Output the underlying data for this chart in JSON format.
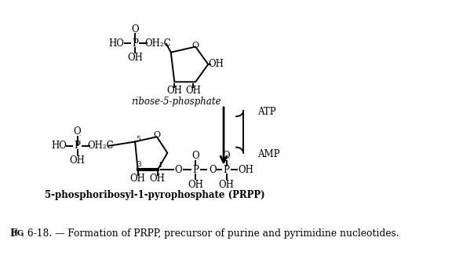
{
  "title_fig": "FIG",
  "title_rest": ". 6-18. — Formation of PRPP, precursor of purine and pyrimidine nucleotides.",
  "ribose_label": "ribose-5-phosphate",
  "prpp_label": "5-phosphoribosyl-1-pyrophosphate (PRPP)",
  "atp_label": "ATP",
  "amp_label": "AMP",
  "bg_color": "#ffffff",
  "text_color": "#000000",
  "figsize": [
    5.76,
    3.35
  ],
  "dpi": 100
}
